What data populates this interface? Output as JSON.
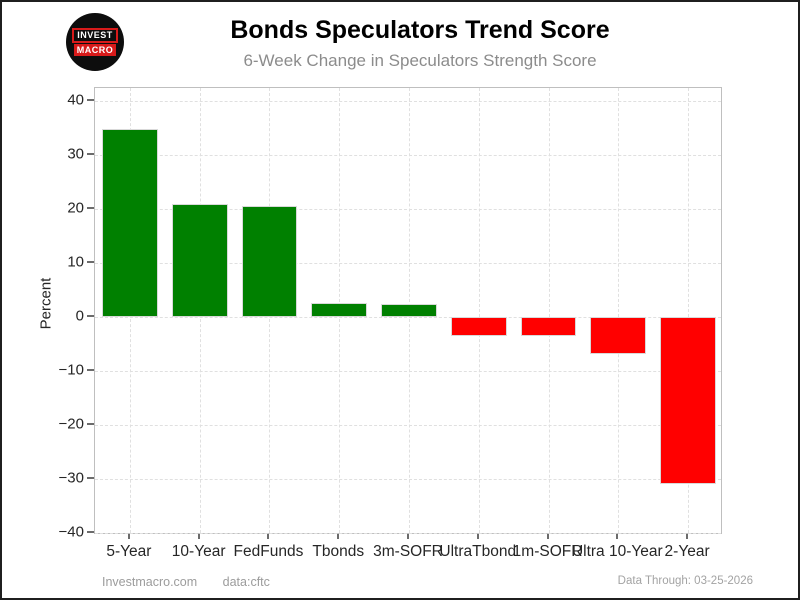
{
  "logo": {
    "line1": "INVEST",
    "line2": "MACRO"
  },
  "footer": {
    "site": "Investmacro.com",
    "source": "data:cftc",
    "data_through": "Data Through: 03-25-2026"
  },
  "chart_data": {
    "type": "bar",
    "title": "Bonds Speculators Trend Score",
    "subtitle": "6-Week Change in Speculators Strength Score",
    "ylabel": "Percent",
    "xlabel": "",
    "categories": [
      "5-Year",
      "10-Year",
      "FedFunds",
      "Tbonds",
      "3m-SOFR",
      "UltraTbond",
      "1m-SOFR",
      "Ultra 10-Year",
      "2-Year"
    ],
    "values": [
      34.8,
      20.9,
      20.6,
      2.6,
      2.3,
      -3.5,
      -3.5,
      -6.9,
      -31.0
    ],
    "positive_color": "#008000",
    "negative_color": "#ff0000",
    "bar_width_fraction": 0.8,
    "ylim": [
      -40.4,
      42.4
    ],
    "yticks": [
      {
        "label": "40",
        "value": 40
      },
      {
        "label": "30",
        "value": 30
      },
      {
        "label": "20",
        "value": 20
      },
      {
        "label": "10",
        "value": 10
      },
      {
        "label": "0",
        "value": 0
      },
      {
        "label": "−10",
        "value": -10
      },
      {
        "label": "−20",
        "value": -20
      },
      {
        "label": "−30",
        "value": -30
      },
      {
        "label": "−40",
        "value": -40
      }
    ],
    "grid": "dashed",
    "legend": null
  }
}
